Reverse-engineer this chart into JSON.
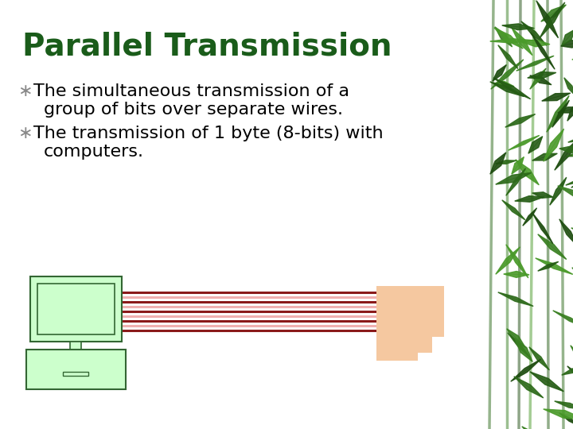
{
  "title": "Parallel Transmission",
  "title_color": "#1a5c1a",
  "title_fontsize": 28,
  "title_weight": "bold",
  "bg_color": "#ffffff",
  "bullet_symbol": "∗",
  "bullet_color": "#888888",
  "bullet_fontsize": 16,
  "bullet1_line1": "The simultaneous transmission of a",
  "bullet1_line2": "group of bits over separate wires.",
  "bullet2_line1": "The transmission of 1 byte (8-bits) with",
  "bullet2_line2": "computers.",
  "text_color": "#000000",
  "monitor_color": "#ccffcc",
  "monitor_border": "#336633",
  "wire_dark": "#8b1a1a",
  "wire_light": "#f0b0b0",
  "connector_color": "#f5c8a0",
  "num_wires": 9,
  "bamboo_colors": [
    "#2d6a1a",
    "#3a8022",
    "#1e4d10",
    "#4a9a2a",
    "#255c15"
  ],
  "figwidth": 7.2,
  "figheight": 5.4,
  "dpi": 100
}
